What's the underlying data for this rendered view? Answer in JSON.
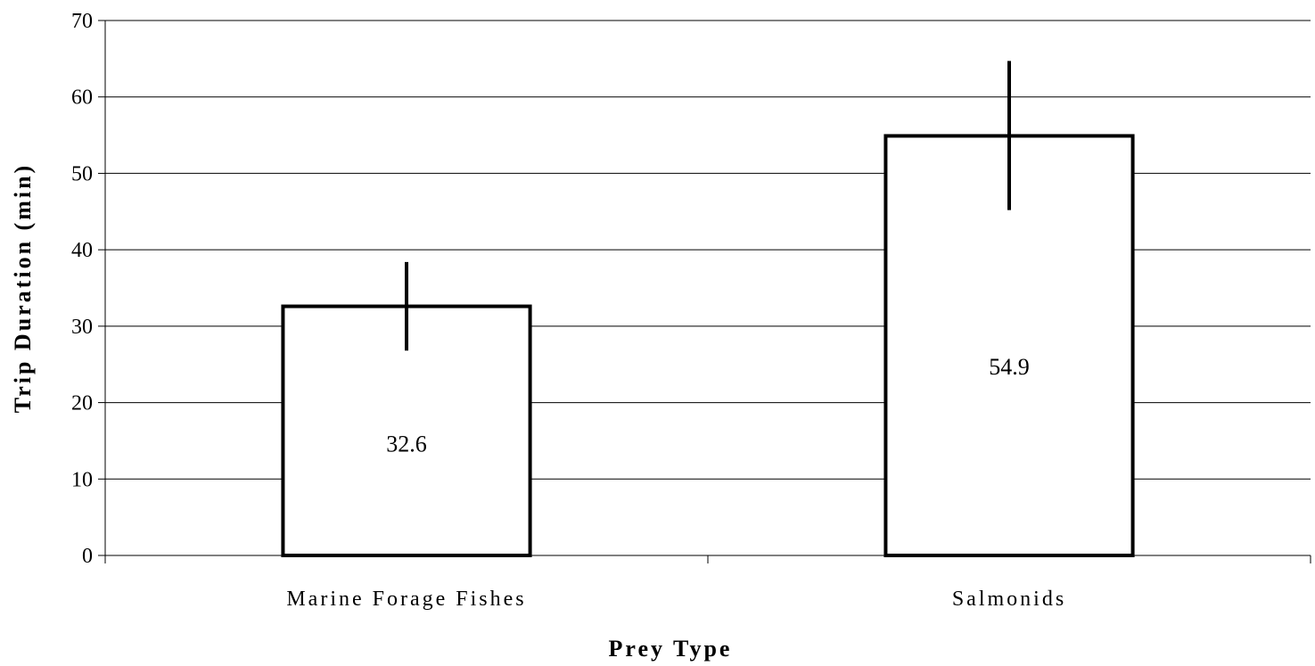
{
  "chart_data": {
    "type": "bar",
    "categories": [
      "Marine Forage Fishes",
      "Salmonids"
    ],
    "values": [
      32.6,
      54.9
    ],
    "data_labels": [
      "32.6",
      "54.9"
    ],
    "error_bars": [
      {
        "low": 26.8,
        "high": 38.4
      },
      {
        "low": 45.2,
        "high": 64.7
      }
    ],
    "title": "",
    "xlabel": "Prey Type",
    "ylabel": "Trip Duration (min)",
    "ylim": [
      0,
      70
    ],
    "yticks": [
      0,
      10,
      20,
      30,
      40,
      50,
      60,
      70
    ],
    "ytick_labels": [
      "0",
      "10",
      "20",
      "30",
      "40",
      "50",
      "60",
      "70"
    ],
    "grid": true,
    "legend": "none",
    "colors": {
      "bar_fill": "#ffffff",
      "bar_stroke": "#000000",
      "grid": "#000000",
      "text": "#000000"
    }
  }
}
